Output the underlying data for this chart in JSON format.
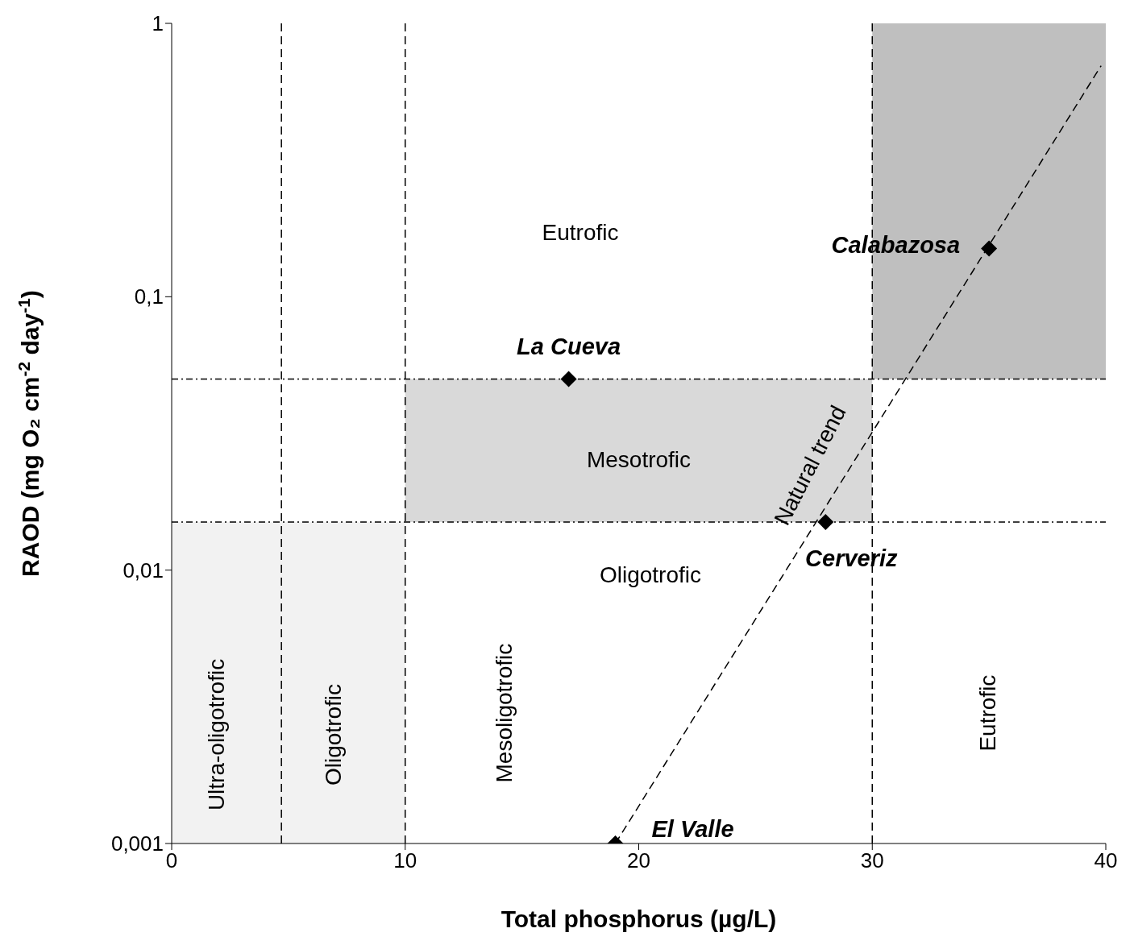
{
  "chart_data": {
    "type": "scatter",
    "xlabel": "Total phosphorus  (µg/L)",
    "ylabel": "RAOD (mg O₂ cm$^{-2}$ day$^{-1}$)",
    "xlim": [
      0,
      40
    ],
    "xticks": [
      0,
      10,
      20,
      30,
      40
    ],
    "ylim": [
      0.001,
      1
    ],
    "log": "y",
    "yticks": [
      {
        "value": 0.001,
        "label": "0,001"
      },
      {
        "value": 0.01,
        "label": "0,01"
      },
      {
        "value": 0.1,
        "label": "0,1"
      },
      {
        "value": 1,
        "label": "1"
      }
    ],
    "grid": false,
    "legend": false,
    "marker": "diamond",
    "series": [
      {
        "type": "scatter",
        "color": "#000000",
        "x": [
          17,
          35,
          28,
          19
        ],
        "values": [
          0.05,
          0.15,
          0.015,
          0.001
        ]
      },
      {
        "type": "line",
        "color": "#000000",
        "line_style": "dashed",
        "marker": "none",
        "x": [
          19,
          39.8
        ],
        "values": [
          0.001,
          0.7
        ]
      }
    ],
    "bands": [
      {
        "axis": "x",
        "from": 0,
        "to": 10,
        "color": "#f2f2f2"
      },
      {
        "axis": "x",
        "from": 10,
        "to": 30,
        "color": "#d9d9d9"
      },
      {
        "axis": "x",
        "from": 30,
        "to": 40,
        "color": "#bfbfbf"
      }
    ],
    "ref_lines": [
      {
        "axis": "x",
        "value": 4.7,
        "line_style": "dashed"
      },
      {
        "axis": "x",
        "value": 10,
        "line_style": "dashed"
      },
      {
        "axis": "x",
        "value": 30,
        "line_style": "dashed"
      },
      {
        "axis": "y",
        "value": 0.05,
        "line_style": "dashdot"
      },
      {
        "axis": "y",
        "value": 0.015,
        "line_style": "dashdot"
      }
    ],
    "annotations": [
      {
        "text": "La Cueva",
        "x": 17,
        "y": 0.05
      },
      {
        "text": "Calabazosa",
        "x": 35,
        "y": 0.15
      },
      {
        "text": "Cerveriz",
        "x": 28,
        "y": 0.015
      },
      {
        "text": "El Valle",
        "x": 19,
        "y": 0.001
      },
      "Natural trend",
      "Eutrofic",
      "Mesotrofic",
      "Oligotrofic",
      "Ultra-oligotrofic",
      "Oligotrofic",
      "Mesoligotrofic",
      "Eutrofic"
    ]
  }
}
